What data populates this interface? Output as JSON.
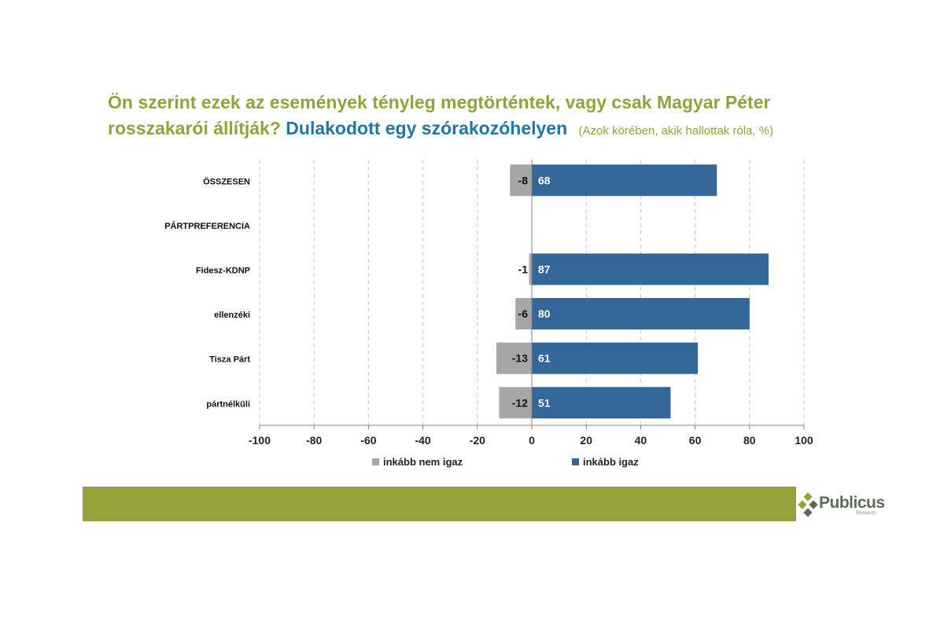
{
  "title": {
    "line1": "Ön szerint ezek az események tényleg megtörténtek, vagy csak Magyar Péter",
    "line2_start": "rosszakarói állítják?",
    "line2_highlight": "Dulakodott egy szórakozóhelyen",
    "note": "(Azok körében, akik hallottak róla, %)"
  },
  "colors": {
    "title_green": "#8ea53a",
    "title_blue": "#1f77a4",
    "negative_bar": "#a6a6a6",
    "positive_bar": "#336699",
    "footer_bar": "#97a23c"
  },
  "chart_data": {
    "type": "bar",
    "orientation": "horizontal-diverging",
    "categories": [
      "ÖSSZESEN",
      "PÁRTPREFERENCIA",
      "Fidesz-KDNP",
      "ellenzéki",
      "Tisza Párt",
      "pártnélküli"
    ],
    "series": [
      {
        "name": "inkább nem igaz",
        "color": "#a6a6a6",
        "values": [
          -8,
          null,
          -1,
          -6,
          -13,
          -12
        ]
      },
      {
        "name": "inkább igaz",
        "color": "#336699",
        "values": [
          68,
          null,
          87,
          80,
          61,
          51
        ]
      }
    ],
    "xlim": [
      -100,
      100
    ],
    "xticks": [
      -100,
      -80,
      -60,
      -40,
      -20,
      0,
      20,
      40,
      60,
      80,
      100
    ],
    "grid": "vertical-dashed",
    "legend_position": "bottom"
  },
  "logo": {
    "name": "Publicus",
    "sub": "Research",
    "icon": "diamond-cluster-icon"
  }
}
